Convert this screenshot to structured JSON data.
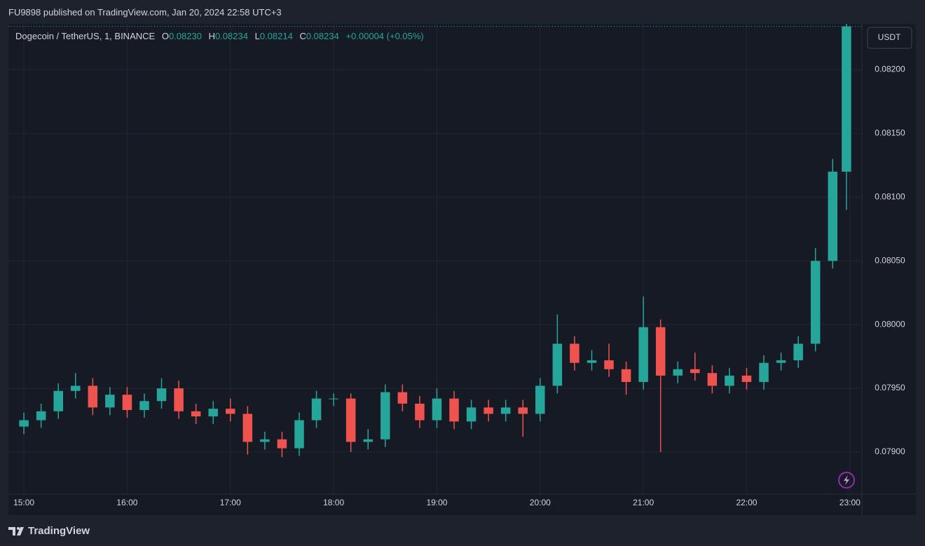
{
  "header": {
    "published": "FU9898 published on TradingView.com, Jan 20, 2024 22:58 UTC+3",
    "brand": "TradingView",
    "currency_button": "USDT"
  },
  "ohlc_legend": {
    "symbol": "Dogecoin / TetherUS, 1, BINANCE",
    "open_label": "O",
    "open": "0.08230",
    "high_label": "H",
    "high": "0.08234",
    "low_label": "L",
    "low": "0.08214",
    "close_label": "C",
    "close": "0.08234",
    "change": "+0.00004 (+0.05%)"
  },
  "chart_data": {
    "type": "candlestick",
    "up_color": "#26a69a",
    "down_color": "#ef5350",
    "grid": true,
    "xlim": [
      891,
      1387
    ],
    "xticks": [
      {
        "value": 900,
        "label": "15:00"
      },
      {
        "value": 960,
        "label": "16:00"
      },
      {
        "value": 1020,
        "label": "17:00"
      },
      {
        "value": 1080,
        "label": "18:00"
      },
      {
        "value": 1140,
        "label": "19:00"
      },
      {
        "value": 1200,
        "label": "20:00"
      },
      {
        "value": 1260,
        "label": "21:00"
      },
      {
        "value": 1320,
        "label": "22:00"
      },
      {
        "value": 1380,
        "label": "23:00"
      }
    ],
    "ylim": [
      0.07867,
      0.08236
    ],
    "yticks": [
      {
        "value": 0.079,
        "label": "0.07900"
      },
      {
        "value": 0.0795,
        "label": "0.07950"
      },
      {
        "value": 0.08,
        "label": "0.08000"
      },
      {
        "value": 0.0805,
        "label": "0.08050"
      },
      {
        "value": 0.081,
        "label": "0.08100"
      },
      {
        "value": 0.0815,
        "label": "0.08150"
      },
      {
        "value": 0.082,
        "label": "0.08200"
      }
    ],
    "x": [
      900,
      910,
      920,
      930,
      940,
      950,
      960,
      970,
      980,
      990,
      1000,
      1010,
      1020,
      1030,
      1040,
      1050,
      1060,
      1070,
      1080,
      1090,
      1100,
      1110,
      1120,
      1130,
      1140,
      1150,
      1160,
      1170,
      1180,
      1190,
      1200,
      1210,
      1220,
      1230,
      1240,
      1250,
      1260,
      1270,
      1280,
      1290,
      1300,
      1310,
      1320,
      1330,
      1340,
      1350,
      1360,
      1370,
      1378
    ],
    "open": [
      0.0792,
      0.07925,
      0.07932,
      0.07948,
      0.07952,
      0.07935,
      0.07945,
      0.07933,
      0.0794,
      0.0795,
      0.07932,
      0.07928,
      0.07934,
      0.0793,
      0.07908,
      0.0791,
      0.07903,
      0.07925,
      0.07942,
      0.07942,
      0.07908,
      0.0791,
      0.07947,
      0.07938,
      0.07925,
      0.07942,
      0.07924,
      0.07935,
      0.0793,
      0.07935,
      0.0793,
      0.07952,
      0.07985,
      0.0797,
      0.07972,
      0.07965,
      0.07955,
      0.07998,
      0.0796,
      0.07965,
      0.07962,
      0.07952,
      0.0796,
      0.07955,
      0.0797,
      0.07972,
      0.07985,
      0.0805,
      0.0812
    ],
    "high": [
      0.07931,
      0.07938,
      0.07954,
      0.07962,
      0.07958,
      0.07951,
      0.07951,
      0.07946,
      0.07958,
      0.07956,
      0.07938,
      0.0794,
      0.07942,
      0.07936,
      0.07916,
      0.07916,
      0.07931,
      0.07948,
      0.07946,
      0.07946,
      0.07918,
      0.07953,
      0.07953,
      0.07944,
      0.0795,
      0.07948,
      0.07941,
      0.07941,
      0.07941,
      0.07941,
      0.07958,
      0.08008,
      0.07991,
      0.0798,
      0.07985,
      0.07971,
      0.08022,
      0.08004,
      0.07971,
      0.07978,
      0.07968,
      0.07966,
      0.07966,
      0.07976,
      0.07978,
      0.07991,
      0.0806,
      0.0813,
      0.08236
    ],
    "low": [
      0.07914,
      0.07919,
      0.07926,
      0.07942,
      0.07929,
      0.07929,
      0.07927,
      0.07927,
      0.07934,
      0.07926,
      0.07922,
      0.07922,
      0.07924,
      0.07898,
      0.07902,
      0.07896,
      0.07897,
      0.07919,
      0.07936,
      0.079,
      0.07902,
      0.07904,
      0.07932,
      0.07919,
      0.07919,
      0.07918,
      0.07918,
      0.07924,
      0.07924,
      0.07912,
      0.07924,
      0.07946,
      0.07964,
      0.07964,
      0.07959,
      0.07945,
      0.07949,
      0.079,
      0.07954,
      0.07956,
      0.07946,
      0.07946,
      0.07949,
      0.07949,
      0.07964,
      0.07966,
      0.07979,
      0.08044,
      0.0809
    ],
    "close": [
      0.07925,
      0.07932,
      0.07948,
      0.07952,
      0.07935,
      0.07945,
      0.07933,
      0.0794,
      0.0795,
      0.07932,
      0.07928,
      0.07934,
      0.0793,
      0.07908,
      0.0791,
      0.07903,
      0.07925,
      0.07942,
      0.07942,
      0.07908,
      0.0791,
      0.07947,
      0.07938,
      0.07925,
      0.07942,
      0.07924,
      0.07935,
      0.0793,
      0.07935,
      0.0793,
      0.07952,
      0.07985,
      0.0797,
      0.07972,
      0.07965,
      0.07955,
      0.07998,
      0.0796,
      0.07965,
      0.07962,
      0.07952,
      0.0796,
      0.07955,
      0.0797,
      0.07972,
      0.07985,
      0.0805,
      0.0812,
      0.08234
    ]
  }
}
